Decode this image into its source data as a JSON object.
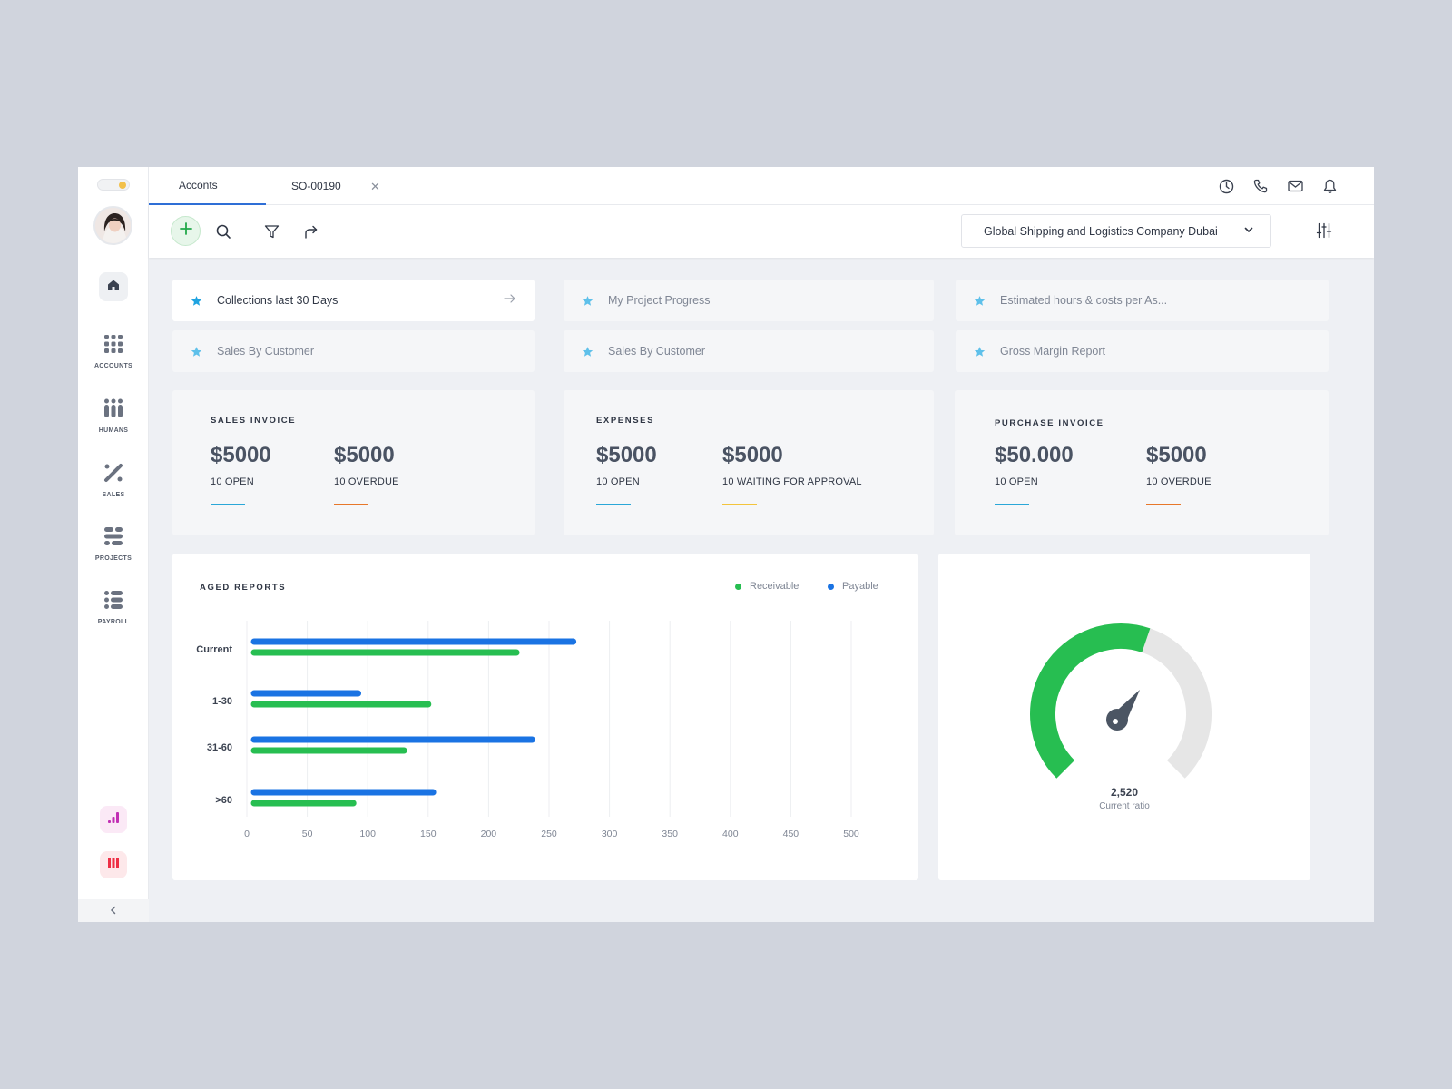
{
  "sidebar": {
    "items": [
      {
        "label": "ACCOUNTS",
        "icon": "accounts-grid-icon"
      },
      {
        "label": "HUMANS",
        "icon": "humans-icon"
      },
      {
        "label": "SALES",
        "icon": "sales-icon"
      },
      {
        "label": "PROJECTS",
        "icon": "projects-icon"
      },
      {
        "label": "PAYROLL",
        "icon": "payroll-icon"
      }
    ]
  },
  "tabs": [
    {
      "label": "Acconts",
      "active": true
    },
    {
      "label": "SO-00190",
      "active": false
    }
  ],
  "toolbar": {
    "company": "Global Shipping and Logistics Company Dubai"
  },
  "quick_links": [
    {
      "label": "Collections last 30 Days"
    },
    {
      "label": "My Project Progress"
    },
    {
      "label": "Estimated hours & costs per As..."
    },
    {
      "label": "Sales By Customer"
    },
    {
      "label": "Sales By Customer"
    },
    {
      "label": "Gross Margin Report"
    }
  ],
  "stats": [
    {
      "title": "SALES INVOICE",
      "cols": [
        {
          "value": "$5000",
          "label": "10 OPEN",
          "color": "#2aa7d8"
        },
        {
          "value": "$5000",
          "label": "10 OVERDUE",
          "color": "#e7772a"
        }
      ]
    },
    {
      "title": "EXPENSES",
      "cols": [
        {
          "value": "$5000",
          "label": "10 OPEN",
          "color": "#2aa7d8"
        },
        {
          "value": "$5000",
          "label": "10 WAITING FOR APPROVAL",
          "color": "#f3c43c"
        }
      ]
    },
    {
      "title": "PURCHASE INVOICE",
      "cols": [
        {
          "value": "$50.000",
          "label": "10 OPEN",
          "color": "#2aa7d8"
        },
        {
          "value": "$5000",
          "label": "10 OVERDUE",
          "color": "#e7772a"
        }
      ]
    }
  ],
  "colors": {
    "receivable": "#27be51",
    "payable": "#1a73e3",
    "accent": "#2f6fd6"
  },
  "chart_data": {
    "type": "bar",
    "orientation": "horizontal",
    "title": "AGED REPORTS",
    "categories": [
      "Current",
      "1-30",
      "31-60",
      ">60"
    ],
    "series": [
      {
        "name": "Payable",
        "values": [
          270,
          92,
          236,
          154
        ]
      },
      {
        "name": "Receivable",
        "values": [
          223,
          150,
          130,
          88
        ]
      }
    ],
    "x_ticks": [
      "0",
      "50",
      "100",
      "150",
      "200",
      "250",
      "300",
      "350",
      "400",
      "450",
      "500"
    ],
    "xlim": [
      0,
      500
    ],
    "grid": true,
    "legend": "top-right"
  },
  "gauge": {
    "value": "2,520",
    "label": "Current ratio",
    "fill_fraction": 0.57
  }
}
